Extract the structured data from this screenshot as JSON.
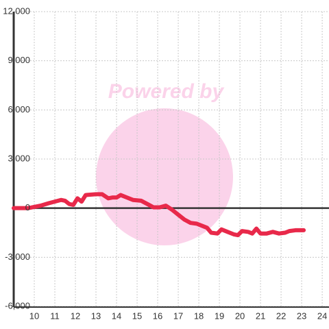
{
  "chart_data": {
    "type": "line",
    "watermark": "Powered by",
    "x": [
      9.0,
      9.7,
      10.3,
      10.7,
      11.0,
      11.3,
      11.5,
      11.7,
      11.9,
      12.1,
      12.3,
      12.5,
      13.0,
      13.3,
      13.6,
      13.8,
      14.0,
      14.2,
      14.5,
      14.8,
      15.2,
      15.5,
      15.8,
      16.1,
      16.4,
      16.7,
      17.0,
      17.3,
      17.6,
      17.9,
      18.2,
      18.4,
      18.6,
      18.9,
      19.1,
      19.4,
      19.7,
      19.9,
      20.1,
      20.4,
      20.6,
      20.8,
      21.0,
      21.3,
      21.6,
      21.9,
      22.2,
      22.4,
      22.7,
      23.1
    ],
    "values": [
      0,
      0,
      150,
      300,
      400,
      500,
      450,
      250,
      200,
      600,
      400,
      800,
      850,
      850,
      600,
      650,
      650,
      800,
      650,
      500,
      450,
      250,
      50,
      50,
      150,
      -100,
      -400,
      -700,
      -900,
      -950,
      -1100,
      -1200,
      -1500,
      -1550,
      -1300,
      -1450,
      -1600,
      -1650,
      -1400,
      -1450,
      -1550,
      -1250,
      -1550,
      -1550,
      -1450,
      -1550,
      -1500,
      -1400,
      -1350,
      -1350
    ],
    "color": "#e8294a",
    "xlim": [
      9,
      24.33
    ],
    "xticks": [
      10,
      11,
      12,
      13,
      14,
      15,
      16,
      17,
      18,
      19,
      20,
      21,
      22,
      23,
      24
    ],
    "ylim": [
      -6000,
      12000
    ],
    "yticks": [
      {
        "value": -6000,
        "label": "-6,000"
      },
      {
        "value": -3000,
        "label": "-3,000"
      },
      0,
      {
        "value": 3000,
        "label": "3,000"
      },
      {
        "value": 6000,
        "label": "6,000"
      },
      {
        "value": 9000,
        "label": "9,000"
      },
      {
        "value": 12000,
        "label": "12,000"
      }
    ],
    "grid": true
  }
}
